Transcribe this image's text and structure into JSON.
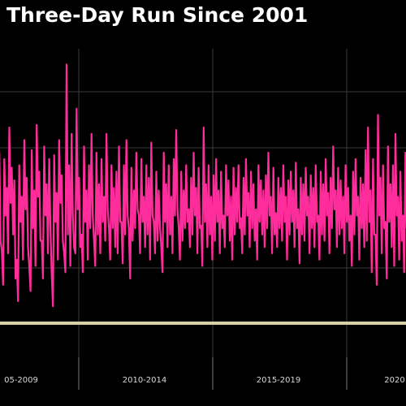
{
  "title": "Three-Day Run Since 2001",
  "colors": {
    "background": "#000000",
    "series": "#ff2d9b",
    "baseline": "#d8d2a8",
    "grid": "#3a3a3a",
    "text": "#ffffff"
  },
  "chart_data": {
    "type": "line",
    "title": "Three-Day Run Since 2001",
    "xlabel": "",
    "ylabel": "",
    "x_tick_labels": [
      "05-2009",
      "2010-2014",
      "2015-2019",
      "2020"
    ],
    "grid": true,
    "legend": "none",
    "series": [
      {
        "name": "",
        "values": [
          0.55,
          0.22,
          0.48,
          0.4,
          -0.38,
          0.35,
          0.12,
          0.6,
          0.28,
          0.18,
          -0.45,
          0.3,
          0.05,
          0.5,
          0.2,
          -0.5,
          0.42,
          0.1,
          0.62,
          0.25,
          -0.3,
          0.45,
          0.15,
          0.35,
          -0.55,
          0.38,
          0.08,
          0.5,
          0.22,
          -0.4,
          1.1,
          0.3,
          0.55,
          -0.35,
          0.75,
          0.2,
          -0.25,
          0.45,
          0.1,
          0.3,
          0.55,
          -0.3,
          0.4,
          0.15,
          0.35,
          0.05,
          0.55,
          -0.2,
          0.3,
          0.12,
          0.25,
          0.45,
          -0.15,
          0.3,
          0.5,
          -0.2,
          0.28,
          0.1,
          0.4,
          -0.1,
          0.35,
          0.05,
          0.3,
          0.2,
          0.48,
          -0.15,
          0.25,
          0.1,
          -0.35,
          0.4,
          0.15,
          0.3,
          0.05,
          0.35,
          0.58,
          -0.2,
          0.25,
          0.1,
          0.3,
          -0.05,
          0.2,
          0.4,
          0.12,
          0.28,
          -0.18,
          0.6,
          0.15,
          0.3,
          0.05,
          0.22,
          0.35,
          0.1,
          0.25,
          -0.1,
          0.3,
          0.18,
          0.05,
          0.28,
          0.12,
          0.3,
          -0.12,
          0.2,
          0.35,
          0.08,
          0.25,
          0.15,
          -0.05,
          0.3,
          0.18,
          0.1,
          0.22,
          0.4,
          0.05,
          0.28,
          -0.08,
          0.2,
          0.12,
          0.3,
          0.05,
          0.18,
          0.25,
          0.1,
          0.32,
          -0.05,
          0.2,
          0.15,
          0.28,
          0.05,
          0.22,
          0.12,
          0.3,
          -0.1,
          0.25,
          0.15,
          0.35,
          0.08,
          0.2,
          0.45,
          0.1,
          0.28,
          0.18,
          0.05,
          0.3,
          0.12,
          -0.1,
          0.25,
          0.35,
          0.05,
          0.2,
          0.15,
          0.42,
          0.6,
          0.1,
          0.35,
          -0.25,
          0.7,
          0.2,
          0.3,
          -0.15,
          0.45,
          0.15,
          0.3,
          0.55,
          0.05,
          0.25,
          -0.1,
          0.4,
          0.2,
          0.3,
          0.68
        ]
      },
      {
        "name": "",
        "values": [
          -0.2,
          -0.55,
          0.05,
          -0.3,
          -0.65,
          -0.1,
          -0.4,
          0.0,
          -0.25,
          -0.6,
          -0.78,
          -0.15,
          -0.45,
          -0.05,
          -0.35,
          -0.7,
          -0.2,
          -0.5,
          0.05,
          -0.3,
          -0.6,
          -0.1,
          -0.4,
          -0.2,
          -0.82,
          -0.15,
          -0.45,
          0.0,
          -0.3,
          -0.55,
          -0.25,
          -0.5,
          -0.1,
          -0.4,
          -0.05,
          -0.35,
          -0.55,
          -0.15,
          -0.45,
          -0.2,
          -0.1,
          -0.5,
          -0.25,
          -0.4,
          -0.15,
          -0.3,
          -0.05,
          -0.45,
          -0.2,
          -0.35,
          -0.4,
          -0.15,
          -0.48,
          -0.25,
          -0.1,
          -0.6,
          -0.3,
          -0.2,
          -0.05,
          -0.4,
          -0.15,
          -0.35,
          -0.25,
          -0.45,
          -0.1,
          -0.4,
          -0.3,
          -0.2,
          -0.55,
          -0.15,
          -0.35,
          -0.25,
          -0.4,
          -0.1,
          -0.05,
          -0.45,
          -0.3,
          -0.2,
          -0.15,
          -0.35,
          -0.25,
          -0.1,
          -0.4,
          -0.2,
          -0.5,
          -0.15,
          -0.35,
          -0.25,
          -0.45,
          -0.3,
          -0.15,
          -0.4,
          -0.2,
          -0.35,
          -0.1,
          -0.3,
          -0.45,
          -0.25,
          -0.15,
          -0.2,
          -0.4,
          -0.25,
          -0.1,
          -0.35,
          -0.2,
          -0.3,
          -0.45,
          -0.15,
          -0.25,
          -0.35,
          -0.2,
          -0.1,
          -0.4,
          -0.25,
          -0.35,
          -0.2,
          -0.3,
          -0.15,
          -0.45,
          -0.25,
          -0.15,
          -0.35,
          -0.2,
          -0.48,
          -0.25,
          -0.3,
          -0.1,
          -0.4,
          -0.2,
          -0.35,
          -0.15,
          -0.45,
          -0.25,
          -0.3,
          -0.1,
          -0.4,
          -0.2,
          -0.05,
          -0.35,
          -0.25,
          -0.2,
          -0.4,
          -0.15,
          -0.3,
          -0.5,
          -0.25,
          -0.1,
          -0.45,
          -0.2,
          -0.35,
          -0.3,
          -0.15,
          -0.55,
          -0.25,
          -0.65,
          -0.1,
          -0.4,
          -0.2,
          -0.6,
          -0.15,
          -0.35,
          -0.5,
          -0.1,
          -0.45,
          -0.3,
          -0.55,
          -0.2,
          -0.4,
          -0.25,
          -0.15
        ]
      }
    ]
  }
}
